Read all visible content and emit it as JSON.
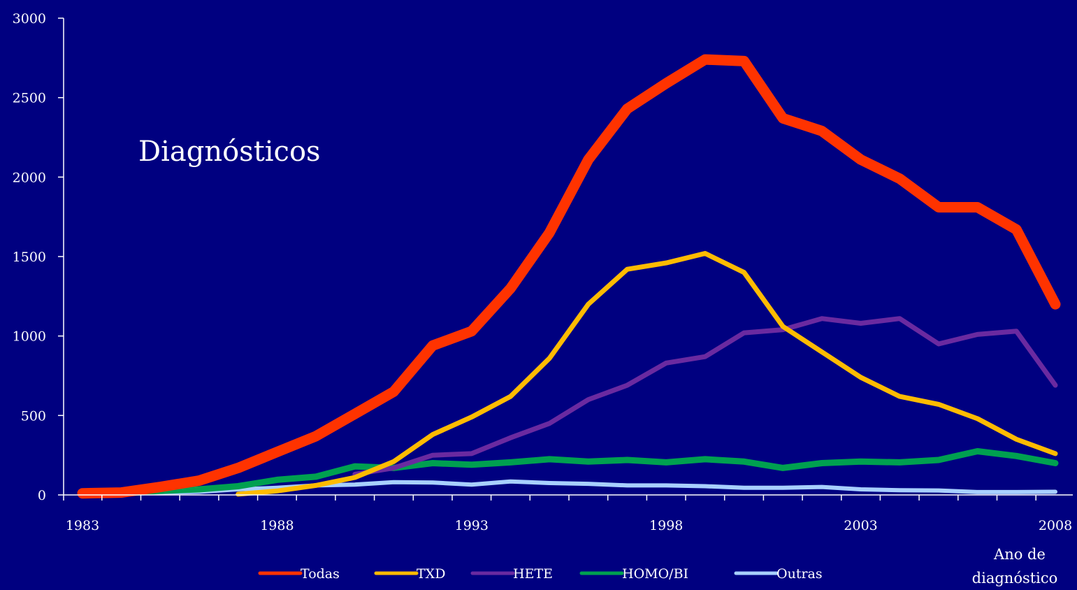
{
  "chart_data": {
    "type": "line",
    "annotation": "Diagnósticos",
    "xlabel_line1": "Ano de",
    "xlabel_line2": "diagnóstico",
    "ylabel": "",
    "x": [
      1983,
      1984,
      1985,
      1986,
      1987,
      1988,
      1989,
      1990,
      1991,
      1992,
      1993,
      1994,
      1995,
      1996,
      1997,
      1998,
      1999,
      2000,
      2001,
      2002,
      2003,
      2004,
      2005,
      2006,
      2007,
      2008
    ],
    "xlim": [
      1983,
      2008
    ],
    "ylim": [
      0,
      3000
    ],
    "x_ticks": [
      "1983",
      "1988",
      "1993",
      "1998",
      "2003",
      "2008"
    ],
    "x_tick_values": [
      1983,
      1988,
      1993,
      1998,
      2003,
      2008
    ],
    "y_ticks": [
      "0",
      "500",
      "1000",
      "1500",
      "2000",
      "2500",
      "3000"
    ],
    "y_tick_values": [
      0,
      500,
      1000,
      1500,
      2000,
      2500,
      3000
    ],
    "grid": false,
    "legend_position": "bottom",
    "series": [
      {
        "name": "Todas",
        "color": "#ff3300",
        "width": 15,
        "values": [
          10,
          15,
          50,
          90,
          170,
          270,
          370,
          510,
          650,
          940,
          1030,
          1300,
          1650,
          2110,
          2430,
          2590,
          2740,
          2730,
          2370,
          2290,
          2110,
          1990,
          1810,
          1810,
          1670,
          1200
        ]
      },
      {
        "name": "TXD",
        "color": "#ffbb00",
        "width": 7,
        "values": [
          null,
          null,
          null,
          null,
          5,
          25,
          60,
          110,
          210,
          380,
          490,
          620,
          860,
          1200,
          1420,
          1460,
          1520,
          1400,
          1060,
          900,
          740,
          620,
          570,
          480,
          350,
          260
        ]
      },
      {
        "name": "HETE",
        "color": "#6a2aa0",
        "width": 7,
        "values": [
          null,
          null,
          null,
          null,
          null,
          null,
          null,
          130,
          170,
          250,
          260,
          360,
          450,
          600,
          690,
          830,
          870,
          1020,
          1040,
          1110,
          1080,
          1110,
          950,
          1010,
          1030,
          690
        ]
      },
      {
        "name": "HOMO/BI",
        "color": "#00a050",
        "width": 9,
        "values": [
          5,
          8,
          25,
          35,
          55,
          95,
          115,
          180,
          170,
          200,
          190,
          205,
          225,
          210,
          220,
          205,
          225,
          210,
          170,
          200,
          210,
          205,
          220,
          275,
          245,
          200
        ]
      },
      {
        "name": "Outras",
        "color": "#a8d0ff",
        "width": 6,
        "values": [
          null,
          5,
          15,
          20,
          35,
          45,
          60,
          65,
          80,
          78,
          65,
          85,
          75,
          70,
          60,
          60,
          55,
          45,
          45,
          50,
          35,
          30,
          28,
          18,
          18,
          20
        ]
      }
    ]
  }
}
